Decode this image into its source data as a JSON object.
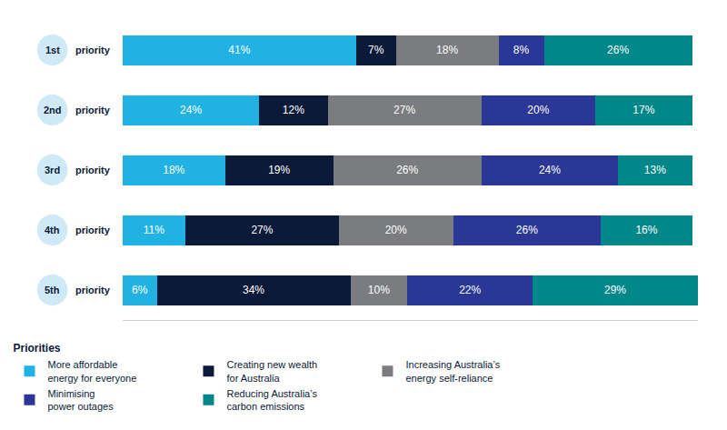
{
  "chart_data": {
    "type": "bar",
    "orientation": "horizontal",
    "stacked": true,
    "data_labels": true,
    "tick_labels": false,
    "legend": "bottom",
    "legend_title": "Priorities",
    "categories": [
      "1st priority",
      "2nd priority",
      "3rd priority",
      "4th priority",
      "5th priority"
    ],
    "xlim": [
      0,
      101
    ],
    "series": [
      {
        "name": "More affordable energy for everyone",
        "color": "#1fb2e3",
        "values": [
          41,
          24,
          18,
          11,
          6
        ],
        "value_labels": [
          "41%",
          "24%",
          "18%",
          "11%",
          "6%"
        ]
      },
      {
        "name": "Creating new wealth for Australia",
        "color": "#0b1a38",
        "values": [
          7,
          12,
          19,
          27,
          34
        ],
        "value_labels": [
          "7%",
          "12%",
          "19%",
          "27%",
          "34%"
        ]
      },
      {
        "name": "Increasing Australia’s energy self-reliance",
        "color": "#7b7c80",
        "values": [
          18,
          27,
          26,
          20,
          10
        ],
        "value_labels": [
          "18%",
          "27%",
          "26%",
          "20%",
          "10%"
        ]
      },
      {
        "name": "Minimising power outages",
        "color": "#2a3796",
        "values": [
          8,
          20,
          24,
          26,
          22
        ],
        "value_labels": [
          "8%",
          "20%",
          "24%",
          "26%",
          "22%"
        ]
      },
      {
        "name": "Reducing Australia’s carbon emissions",
        "color": "#00878a",
        "values": [
          26,
          17,
          13,
          16,
          29
        ],
        "value_labels": [
          "26%",
          "17%",
          "13%",
          "16%",
          "29%"
        ]
      }
    ]
  }
}
